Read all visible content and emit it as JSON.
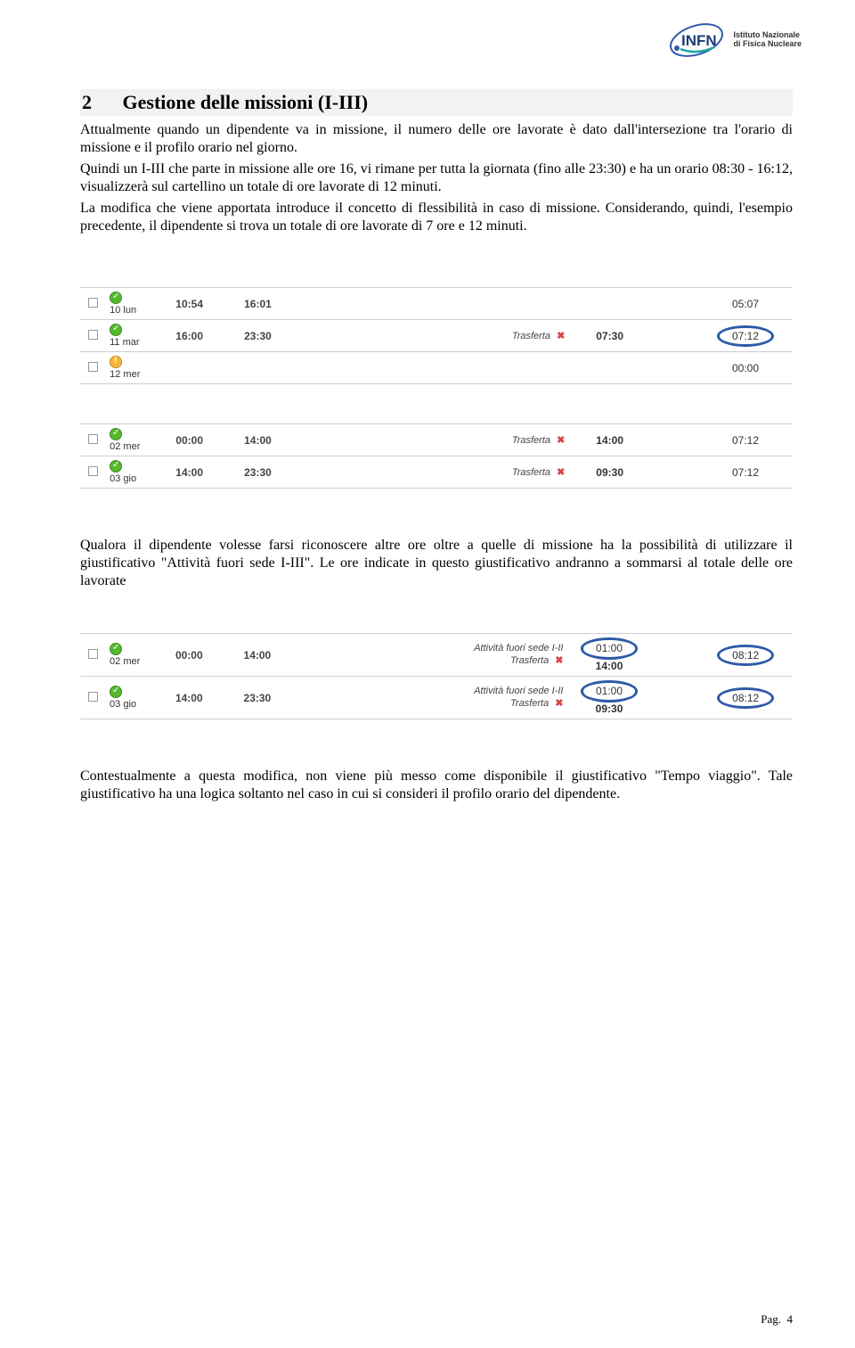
{
  "logo": {
    "brand": "INFN",
    "tagline1": "Istituto Nazionale",
    "tagline2": "di Fisica Nucleare",
    "ring_color": "#2e5aa8",
    "text_color": "#1b3d73",
    "accent_color": "#1aa6a0"
  },
  "section": {
    "number": "2",
    "title": "Gestione delle missioni (I-III)"
  },
  "para1": "Attualmente quando un dipendente va in missione, il numero delle ore lavorate è dato dall'intersezione tra l'orario di missione e il profilo orario nel giorno.",
  "para2": "Quindi un I-III che parte in missione alle ore 16, vi rimane per tutta la giornata (fino alle 23:30) e ha un orario 08:30 - 16:12, visualizzerà sul cartellino un totale di ore lavorate di 12 minuti.",
  "para3": "La modifica che viene apportata introduce il concetto di flessibilità in caso di missione. Considerando, quindi, l'esempio precedente, il dipendente si trova un totale di ore lavorate di 7 ore e 12 minuti.",
  "table1": {
    "rows": [
      {
        "status": "green",
        "day": "10 lun",
        "t1": "10:54",
        "t2": "16:01",
        "type": "",
        "dur": "",
        "tot": "05:07",
        "circle": false
      },
      {
        "status": "green",
        "day": "11 mar",
        "t1": "16:00",
        "t2": "23:30",
        "type": "Trasferta",
        "x": true,
        "dur": "07:30",
        "tot": "07:12",
        "circle": true
      },
      {
        "status": "warn",
        "day": "12 mer",
        "t1": "",
        "t2": "",
        "type": "",
        "dur": "",
        "tot": "00:00",
        "circle": false
      }
    ]
  },
  "table2": {
    "rows": [
      {
        "status": "green",
        "day": "02 mer",
        "t1": "00:00",
        "t2": "14:00",
        "type": "Trasferta",
        "x": true,
        "dur": "14:00",
        "tot": "07:12",
        "circle": false
      },
      {
        "status": "green",
        "day": "03 gio",
        "t1": "14:00",
        "t2": "23:30",
        "type": "Trasferta",
        "x": true,
        "dur": "09:30",
        "tot": "07:12",
        "circle": false
      }
    ]
  },
  "para4": "Qualora il dipendente volesse farsi riconoscere altre ore oltre a quelle di missione ha la possibilità di utilizzare il giustificativo \"Attività fuori sede I-III\". Le ore indicate in questo giustificativo andranno a sommarsi al totale delle ore lavorate",
  "table3": {
    "rows": [
      {
        "status": "green",
        "day": "02 mer",
        "t1": "00:00",
        "t2": "14:00",
        "lines": [
          {
            "type": "Attività fuori sede I-II",
            "x": false,
            "dur": "01:00",
            "dur_circle": true
          },
          {
            "type": "Trasferta",
            "x": true,
            "dur": "14:00",
            "dur_circle": false
          }
        ],
        "tot": "08:12",
        "circle": true
      },
      {
        "status": "green",
        "day": "03 gio",
        "t1": "14:00",
        "t2": "23:30",
        "lines": [
          {
            "type": "Attività fuori sede I-II",
            "x": false,
            "dur": "01:00",
            "dur_circle": true
          },
          {
            "type": "Trasferta",
            "x": true,
            "dur": "09:30",
            "dur_circle": false
          }
        ],
        "tot": "08:12",
        "circle": true
      }
    ]
  },
  "para5": "Contestualmente a questa modifica, non viene più messo come disponibile il giustificativo \"Tempo viaggio\". Tale giustificativo ha una logica soltanto nel caso in cui si consideri il profilo orario del dipendente.",
  "footer": {
    "label": "Pag.",
    "num": "4"
  },
  "colors": {
    "heading_bg": "#f2f2f2",
    "row_border": "#cfcfcf",
    "circle": "#2e5aa8",
    "status_green": "#55b82e",
    "status_warn": "#f6b63a",
    "xmark": "#d94444"
  }
}
